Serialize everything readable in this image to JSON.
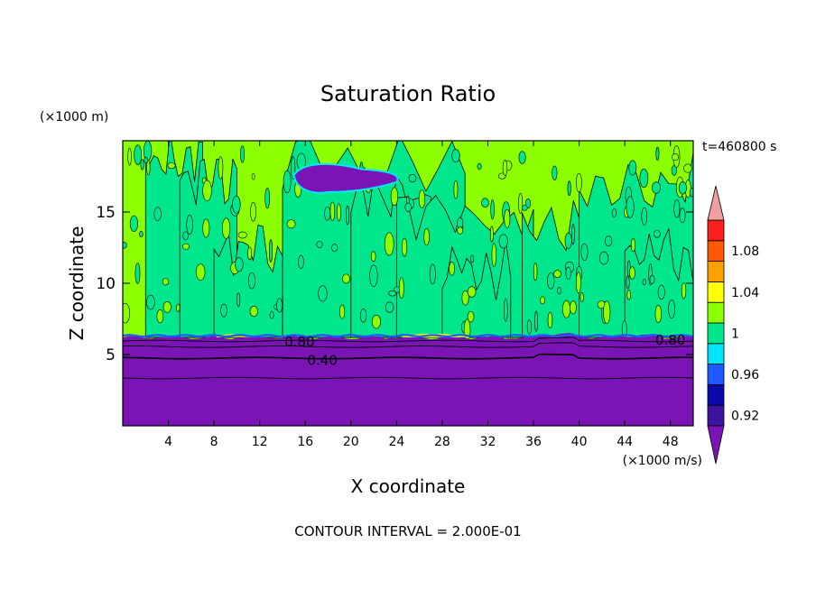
{
  "chart_data": {
    "type": "heatmap",
    "title": "Saturation Ratio",
    "xlabel": "X coordinate",
    "ylabel": "Z coordinate",
    "x_unit": "(×1000 m/s)",
    "y_unit": "(×1000 m)",
    "time_label": "t=460800 s",
    "footer": "CONTOUR INTERVAL = 2.000E-01",
    "xlim": [
      0,
      50
    ],
    "ylim": [
      0,
      20
    ],
    "x_ticks": [
      4,
      8,
      12,
      16,
      20,
      24,
      28,
      32,
      36,
      40,
      44,
      48
    ],
    "y_ticks": [
      5,
      10,
      15
    ],
    "contour_line_labels": [
      {
        "label": "0.80",
        "x": 15.5,
        "z": 5.9
      },
      {
        "label": "0.80",
        "x": 48.0,
        "z": 6.0
      },
      {
        "label": "0.40",
        "x": 17.5,
        "z": 4.6
      }
    ],
    "colorbar": {
      "levels": [
        0.92,
        0.94,
        0.96,
        0.98,
        1.0,
        1.02,
        1.04,
        1.06,
        1.08,
        1.1
      ],
      "tick_labels": [
        "0.92",
        "0.96",
        "1",
        "1.04",
        "1.08"
      ],
      "colors": [
        "#3c14a0",
        "#0a0aaa",
        "#1e5aff",
        "#00e6ff",
        "#00e68c",
        "#8cff00",
        "#ffff00",
        "#ffa000",
        "#ff5a00",
        "#ff1e1e"
      ],
      "under_color": "#7a14b4",
      "over_color": "#f0a0a0"
    },
    "regions": {
      "dry_color": "#7a14b4",
      "supersat_color": "#8cff00",
      "neutral_color": "#00e68c",
      "moist_boundary_z": 6.2
    }
  }
}
